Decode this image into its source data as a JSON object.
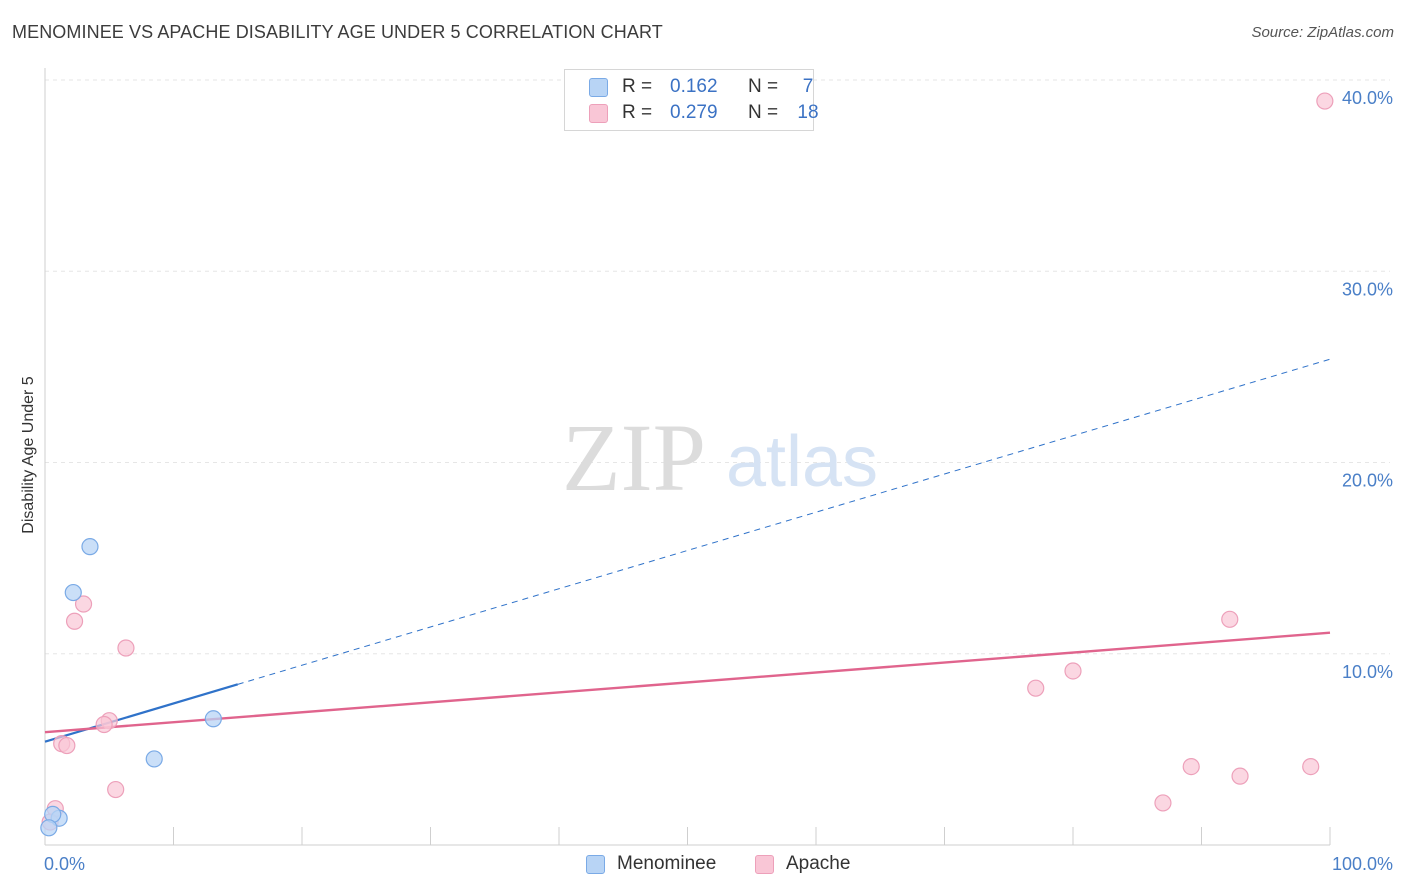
{
  "title": "MENOMINEE VS APACHE DISABILITY AGE UNDER 5 CORRELATION CHART",
  "source": "Source: ZipAtlas.com",
  "watermark": {
    "zip": "ZIP",
    "atlas": "atlas"
  },
  "legend": {
    "rows": [
      {
        "r_label": "R =",
        "r_value": "0.162",
        "n_label": "N =",
        "n_value": "7"
      },
      {
        "r_label": "R =",
        "r_value": "0.279",
        "n_label": "N =",
        "n_value": "18"
      }
    ]
  },
  "colors": {
    "menominee_fill": "#b8d4f5",
    "menominee_stroke": "#7aaae6",
    "menominee_line": "#2f72c9",
    "apache_fill": "#f9c6d6",
    "apache_stroke": "#eda0ba",
    "apache_line": "#e0648d",
    "tick_color": "#4a7fc7"
  },
  "chart_data": {
    "type": "scatter",
    "xlabel": "",
    "ylabel": "Disability Age Under 5",
    "xlim": [
      0,
      100
    ],
    "ylim": [
      0,
      40
    ],
    "x_tick_labels": [
      "0.0%",
      "100.0%"
    ],
    "y_ticks": [
      10,
      20,
      30,
      40
    ],
    "y_tick_labels": [
      "10.0%",
      "20.0%",
      "30.0%",
      "40.0%"
    ],
    "grid": true,
    "series": [
      {
        "name": "Menominee",
        "points": [
          {
            "x": 3.5,
            "y": 15.6
          },
          {
            "x": 2.2,
            "y": 13.2
          },
          {
            "x": 13.1,
            "y": 6.6
          },
          {
            "x": 8.5,
            "y": 4.5
          },
          {
            "x": 1.1,
            "y": 1.4
          },
          {
            "x": 0.6,
            "y": 1.6
          },
          {
            "x": 0.3,
            "y": 0.9
          }
        ],
        "trend": {
          "x0": 0,
          "y0": 5.4,
          "x1": 100,
          "y1": 25.4,
          "solid_until_x": 15
        }
      },
      {
        "name": "Apache",
        "points": [
          {
            "x": 99.6,
            "y": 38.9
          },
          {
            "x": 3.0,
            "y": 12.6
          },
          {
            "x": 2.3,
            "y": 11.7
          },
          {
            "x": 6.3,
            "y": 10.3
          },
          {
            "x": 5.0,
            "y": 6.5
          },
          {
            "x": 4.6,
            "y": 6.3
          },
          {
            "x": 1.3,
            "y": 5.3
          },
          {
            "x": 1.7,
            "y": 5.2
          },
          {
            "x": 5.5,
            "y": 2.9
          },
          {
            "x": 0.8,
            "y": 1.9
          },
          {
            "x": 0.4,
            "y": 1.2
          },
          {
            "x": 92.2,
            "y": 11.8
          },
          {
            "x": 80.0,
            "y": 9.1
          },
          {
            "x": 77.1,
            "y": 8.2
          },
          {
            "x": 89.2,
            "y": 4.1
          },
          {
            "x": 98.5,
            "y": 4.1
          },
          {
            "x": 93.0,
            "y": 3.6
          },
          {
            "x": 87.0,
            "y": 2.2
          }
        ],
        "trend": {
          "x0": 0,
          "y0": 5.9,
          "x1": 100,
          "y1": 11.1
        }
      }
    ]
  }
}
